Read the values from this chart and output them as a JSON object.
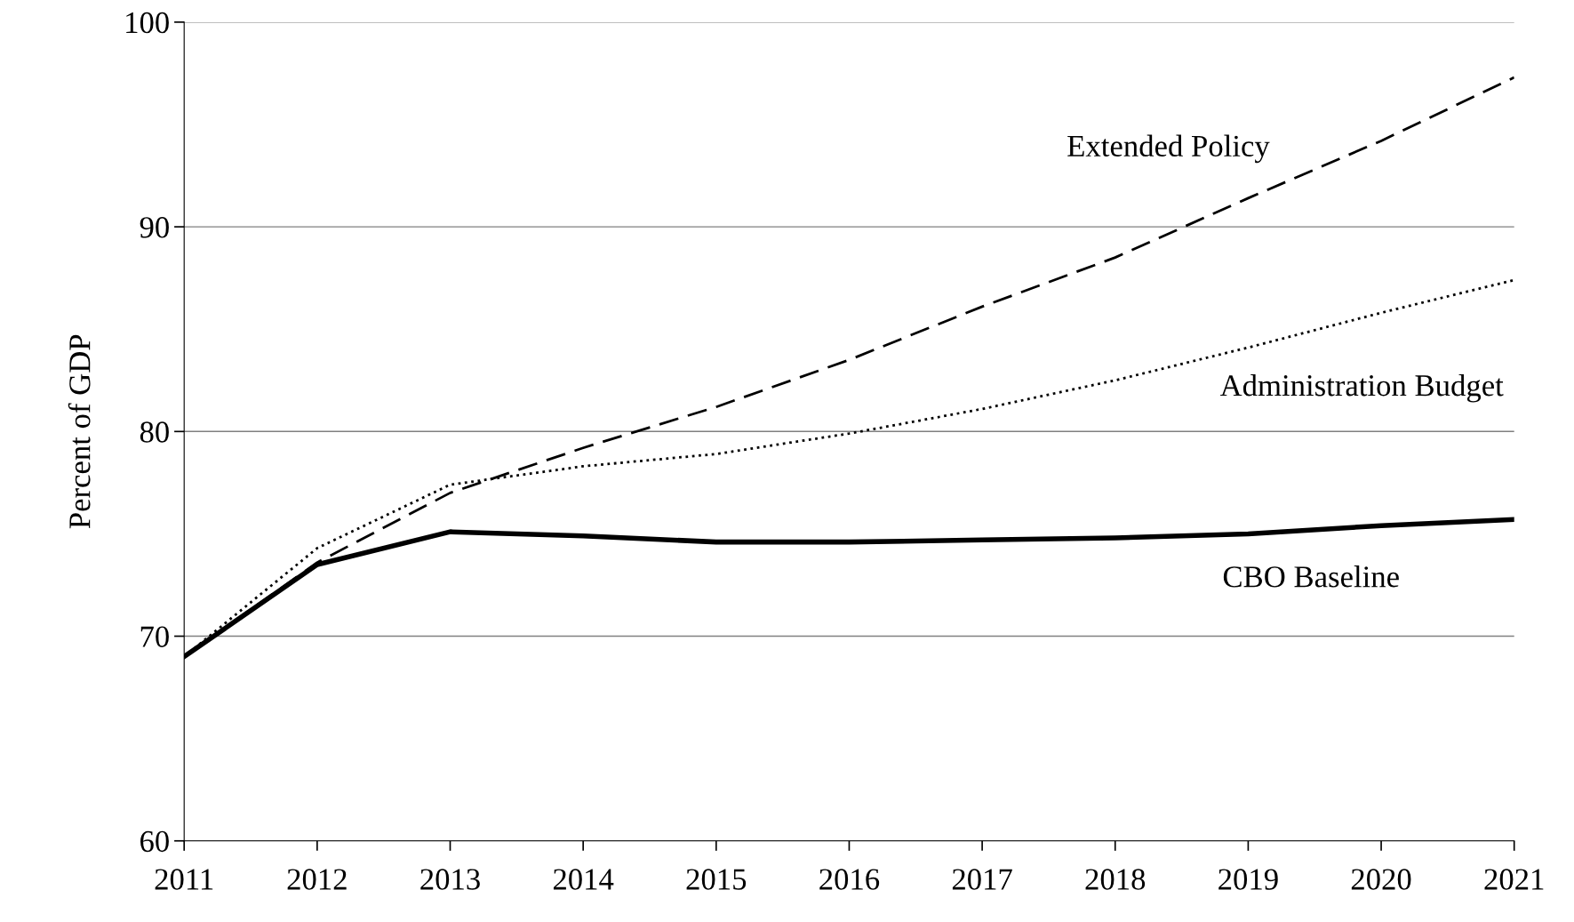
{
  "chart_data": {
    "type": "line",
    "ylabel": "Percent of GDP",
    "x": [
      2011,
      2012,
      2013,
      2014,
      2015,
      2016,
      2017,
      2018,
      2019,
      2020,
      2021
    ],
    "xlim": [
      2011,
      2021
    ],
    "xticks": [
      2011,
      2012,
      2013,
      2014,
      2015,
      2016,
      2017,
      2018,
      2019,
      2020,
      2021
    ],
    "ylim": [
      60,
      100
    ],
    "yticks": [
      60,
      70,
      80,
      90,
      100
    ],
    "grid": "y",
    "legend": false,
    "marker": "none",
    "series": [
      {
        "name": "Extended Policy",
        "color": "#000000",
        "line_style": "dashed",
        "values": [
          69.0,
          73.6,
          77.0,
          79.2,
          81.2,
          83.5,
          86.1,
          88.5,
          91.4,
          94.2,
          97.3
        ]
      },
      {
        "name": "Administration Budget",
        "color": "#000000",
        "line_style": "dotted",
        "values": [
          69.0,
          74.3,
          77.4,
          78.3,
          78.9,
          79.9,
          81.1,
          82.5,
          84.1,
          85.8,
          87.4
        ]
      },
      {
        "name": "CBO Baseline",
        "color": "#000000",
        "line_style": "solid",
        "values": [
          69.0,
          73.5,
          75.1,
          74.9,
          74.6,
          74.6,
          74.7,
          74.8,
          75.0,
          75.4,
          75.7
        ]
      }
    ]
  }
}
